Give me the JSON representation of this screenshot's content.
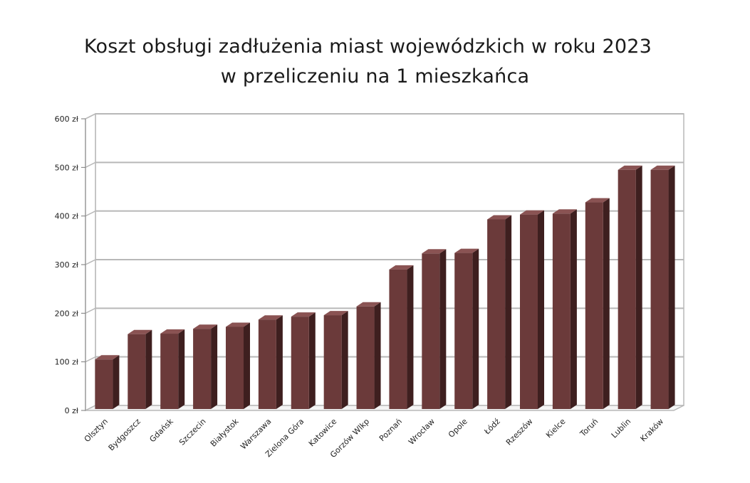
{
  "title_line1": "Koszt obsługi zadłużenia miast wojewódzkich w roku 2023",
  "title_line2": "w przeliczeniu na 1 mieszkańca",
  "colors": {
    "bar": "#6b3a3a",
    "bar_side": "#3e1f1f",
    "bar_top": "#8a5353",
    "grid": "#b8b8b8"
  },
  "chart_data": {
    "type": "bar",
    "title": "Koszt obsługi zadłużenia miast wojewódzkich w roku 2023 w przeliczeniu na 1 mieszkańca",
    "xlabel": "",
    "ylabel": "",
    "ylim": [
      0,
      600
    ],
    "yticks": [
      "0 zł",
      "100 zł",
      "200 zł",
      "300 zł",
      "400 zł",
      "500 zł",
      "600 zł"
    ],
    "grid": true,
    "categories": [
      "Olsztyn",
      "Bydgoszcz",
      "Gdańsk",
      "Szczecin",
      "Białystok",
      "Warszawa",
      "Zielona Góra",
      "Katowice",
      "Gorzów Wlkp",
      "Poznań",
      "Wrocław",
      "Opole",
      "Łódź",
      "Rzeszów",
      "Kielce",
      "Toruń",
      "Lublin",
      "Kraków"
    ],
    "values": [
      105,
      157,
      158,
      168,
      172,
      187,
      193,
      196,
      214,
      290,
      323,
      324,
      393,
      403,
      405,
      428,
      495,
      495
    ]
  }
}
